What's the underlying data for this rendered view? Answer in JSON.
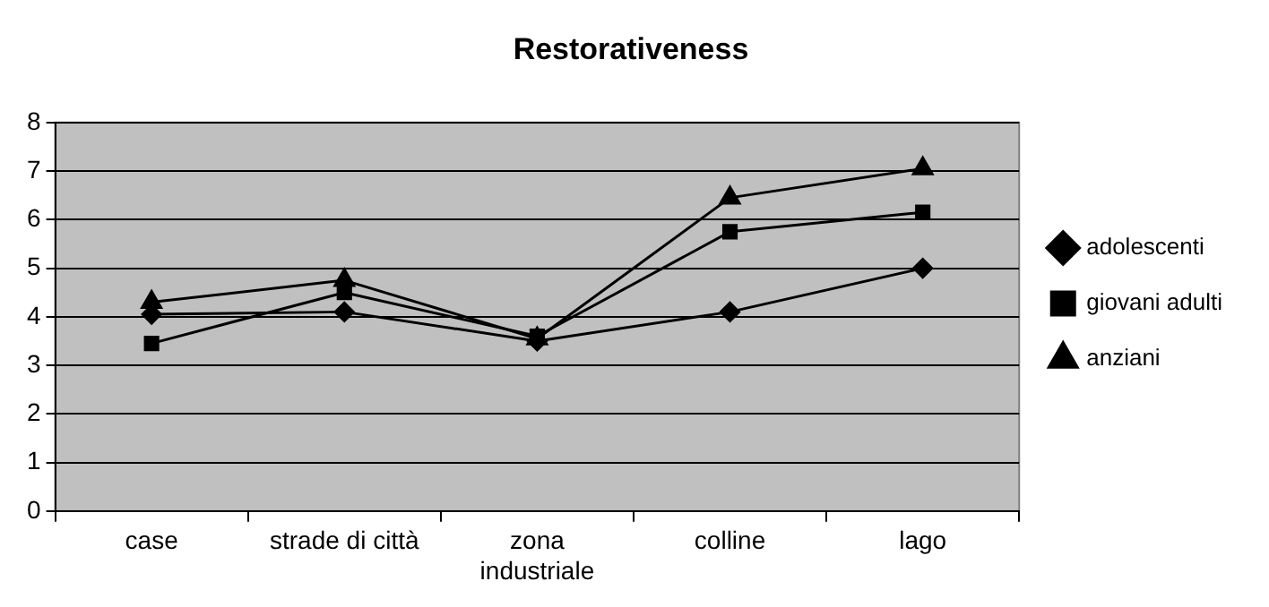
{
  "chart_data": {
    "type": "line",
    "title": "Restorativeness",
    "categories": [
      "case",
      "strade di città",
      "zona industriale",
      "colline",
      "lago"
    ],
    "series": [
      {
        "name": "adolescenti",
        "color": "#000000",
        "marker": "diamond",
        "values": [
          4.05,
          4.1,
          3.5,
          4.1,
          5.0
        ]
      },
      {
        "name": "giovani adulti",
        "color": "#000000",
        "marker": "square",
        "values": [
          3.45,
          4.5,
          3.6,
          5.75,
          6.15
        ]
      },
      {
        "name": "anziani",
        "color": "#000000",
        "marker": "triangle",
        "values": [
          4.3,
          4.75,
          3.55,
          6.45,
          7.05
        ]
      }
    ],
    "ylim": [
      0,
      8
    ],
    "yticks": [
      0,
      1,
      2,
      3,
      4,
      5,
      6,
      7,
      8
    ],
    "grid": "y",
    "legend": "right"
  }
}
